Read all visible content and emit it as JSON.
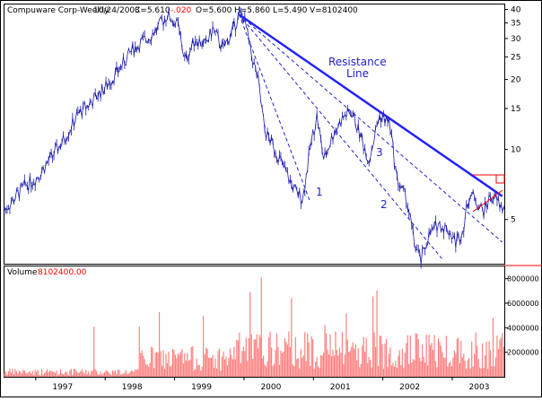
{
  "header": {
    "symbol": "Compuware Corp-Weekly",
    "date": "10/24/2003",
    "close": "C=5.610",
    "change": "-.020",
    "open": "O=5.600",
    "high": "H=5.860",
    "low": "L=5.490",
    "volume": "V=8102400"
  },
  "volume_panel": {
    "label": "Volume",
    "value": "8102400.00"
  },
  "colors": {
    "price": "#1a1aa8",
    "resistance": "#2222ff",
    "fan": "#2222cc",
    "volume": "#ff8080",
    "accent_red": "#ff0000",
    "axis": "#000000"
  },
  "annotations": {
    "resistance_line_1": "Resistance",
    "resistance_line_2": "Line",
    "fan_1": "1",
    "fan_2": "2",
    "fan_3": "3"
  },
  "chart_data": [
    {
      "type": "line",
      "title": "Compuware Corp-Weekly",
      "scale": "log",
      "ylim": [
        3.2,
        42
      ],
      "y_ticks": [
        40,
        35,
        30,
        25,
        20,
        15,
        10,
        5
      ],
      "x_ticks": [
        "1997",
        "1998",
        "1999",
        "2000",
        "2001",
        "2002",
        "2003"
      ],
      "x_tick_positions": [
        1997,
        1998,
        1999,
        2000,
        2001,
        2002,
        2003
      ],
      "xlim": [
        1996.55,
        2003.75
      ],
      "series": [
        {
          "values_x": [
            1996.55,
            1996.7,
            1996.85,
            1997.0,
            1997.2,
            1997.4,
            1997.6,
            1997.8,
            1998.0,
            1998.2,
            1998.4,
            1998.6,
            1998.75,
            1998.9,
            1999.05,
            1999.15,
            1999.3,
            1999.45,
            1999.55,
            1999.7,
            1999.85,
            1999.93,
            2000.0,
            2000.1,
            2000.2,
            2000.3,
            2000.45,
            2000.6,
            2000.75,
            2000.85,
            2000.95,
            2001.05,
            2001.15,
            2001.3,
            2001.45,
            2001.55,
            2001.7,
            2001.8,
            2001.95,
            2002.1,
            2002.2,
            2002.35,
            2002.45,
            2002.55,
            2002.65,
            2002.8,
            2002.95,
            2003.05,
            2003.15,
            2003.25,
            2003.35,
            2003.45,
            2003.55,
            2003.65,
            2003.72
          ],
          "values_y": [
            5.5,
            6.2,
            7.0,
            7.5,
            9.0,
            11.0,
            14.0,
            16.0,
            18.5,
            22.0,
            27.0,
            30.0,
            33.0,
            38.0,
            34.0,
            24.0,
            30.0,
            28.0,
            33.0,
            27.0,
            33.0,
            38.0,
            37.0,
            26.0,
            20.0,
            12.0,
            10.0,
            8.0,
            6.5,
            6.2,
            10.0,
            14.0,
            9.0,
            12.0,
            14.0,
            14.5,
            11.0,
            9.0,
            14.0,
            13.0,
            7.5,
            6.0,
            4.0,
            3.3,
            4.2,
            4.8,
            4.5,
            4.0,
            4.5,
            6.5,
            6.0,
            5.4,
            6.3,
            6.0,
            5.6
          ]
        }
      ],
      "trendlines": [
        {
          "name": "Resistance Line",
          "from": [
            1999.93,
            38.0
          ],
          "to": [
            2003.72,
            6.3
          ]
        },
        {
          "name": "1",
          "from": [
            1999.93,
            38.0
          ],
          "to": [
            2000.95,
            6.0
          ]
        },
        {
          "name": "2",
          "from": [
            1999.93,
            38.0
          ],
          "to": [
            2002.85,
            3.4
          ]
        },
        {
          "name": "3",
          "from": [
            1999.93,
            38.0
          ],
          "to": [
            2003.72,
            4.0
          ]
        }
      ]
    },
    {
      "type": "bar",
      "title": "Volume",
      "ylim": [
        0,
        9000000
      ],
      "y_ticks": [
        8000000,
        6000000,
        4000000,
        2000000
      ],
      "y_tick_labels": [
        "8000000",
        "6000000",
        "4000000",
        "2000000"
      ],
      "last_value": 8102400,
      "x_ticks": [
        "1997",
        "1998",
        "1999",
        "2000",
        "2001",
        "2002",
        "2003"
      ]
    }
  ]
}
